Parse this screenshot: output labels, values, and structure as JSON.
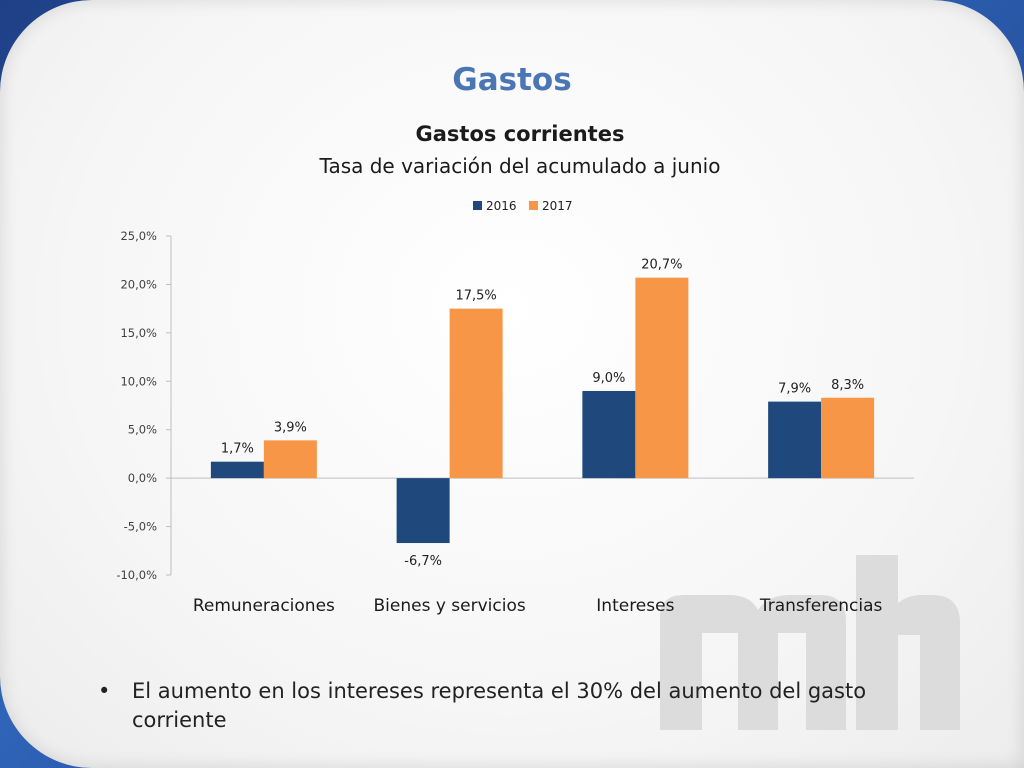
{
  "slide": {
    "title": "Gastos",
    "bullet_symbol": "•",
    "bullet_text": "El aumento en los intereses representa el 30% del aumento  del gasto corriente"
  },
  "colors": {
    "series_2016": "#1f497d",
    "series_2017": "#f79646",
    "title_blue": "#4a76b4",
    "frame_blue": "#2a5aa8",
    "watermark": "#dcdcdc"
  },
  "chart_data": {
    "type": "bar",
    "title": "Gastos corrientes",
    "subtitle": "Tasa de variación del acumulado a junio",
    "categories": [
      "Remuneraciones",
      "Bienes y servicios",
      "Intereses",
      "Transferencias"
    ],
    "series": [
      {
        "name": "2016",
        "values": [
          1.7,
          -6.7,
          9.0,
          7.9
        ],
        "labels": [
          "1,7%",
          "-6,7%",
          "9,0%",
          "7,9%"
        ]
      },
      {
        "name": "2017",
        "values": [
          3.9,
          17.5,
          20.7,
          8.3
        ],
        "labels": [
          "3,9%",
          "17,5%",
          "20,7%",
          "8,3%"
        ]
      }
    ],
    "ylim": [
      -10,
      25
    ],
    "yticks": [
      25,
      20,
      15,
      10,
      5,
      0,
      -5,
      -10
    ],
    "ytick_labels": [
      "25,0%",
      "20,0%",
      "15,0%",
      "10,0%",
      "5,0%",
      "0,0%",
      "-5,0%",
      "-10,0%"
    ],
    "legend_position": "top-center",
    "grid": false
  }
}
